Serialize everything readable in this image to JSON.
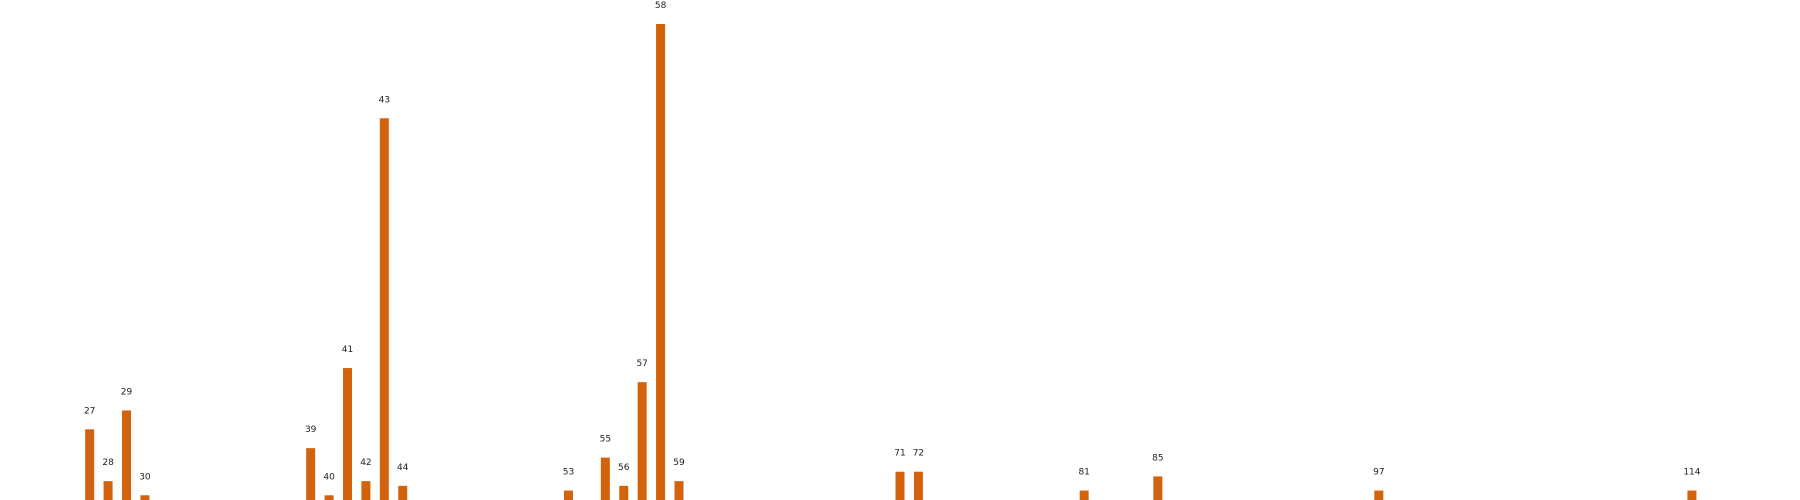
{
  "chart_data": {
    "type": "bar",
    "categories": [
      "27",
      "28",
      "29",
      "30",
      "39",
      "40",
      "41",
      "42",
      "43",
      "44",
      "53",
      "55",
      "56",
      "57",
      "58",
      "59",
      "71",
      "72",
      "81",
      "85",
      "97",
      "114"
    ],
    "x": [
      27,
      28,
      29,
      30,
      39,
      40,
      41,
      42,
      43,
      44,
      53,
      55,
      56,
      57,
      58,
      59,
      71,
      72,
      81,
      85,
      97,
      114
    ],
    "values": [
      15,
      4,
      19,
      1,
      11,
      1,
      28,
      4,
      81,
      3,
      2,
      9,
      3,
      25,
      101,
      4,
      6,
      6,
      2,
      5,
      2,
      2
    ],
    "bar_color": "#d2620c",
    "xlim": [
      23,
      119
    ],
    "ylim": [
      0,
      101
    ],
    "title": "",
    "xlabel": "",
    "ylabel": "",
    "grid": false,
    "axes_visible": false
  }
}
